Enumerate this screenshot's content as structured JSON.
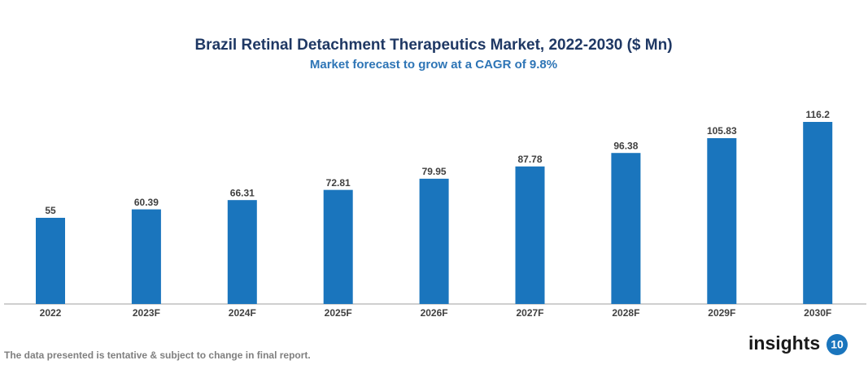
{
  "chart_data": {
    "type": "bar",
    "title": "Brazil Retinal Detachment Therapeutics Market, 2022-2030 ($ Mn)",
    "subtitle": "Market forecast to grow at a CAGR of 9.8%",
    "categories": [
      "2022",
      "2023F",
      "2024F",
      "2025F",
      "2026F",
      "2027F",
      "2028F",
      "2029F",
      "2030F"
    ],
    "values": [
      55,
      60.39,
      66.31,
      72.81,
      79.95,
      87.78,
      96.38,
      105.83,
      116.2
    ],
    "color": "#1a75bd"
  },
  "footer": {
    "note": "The data presented is tentative & subject to change in final report.",
    "logo_text": "insights",
    "logo_number": "10"
  }
}
